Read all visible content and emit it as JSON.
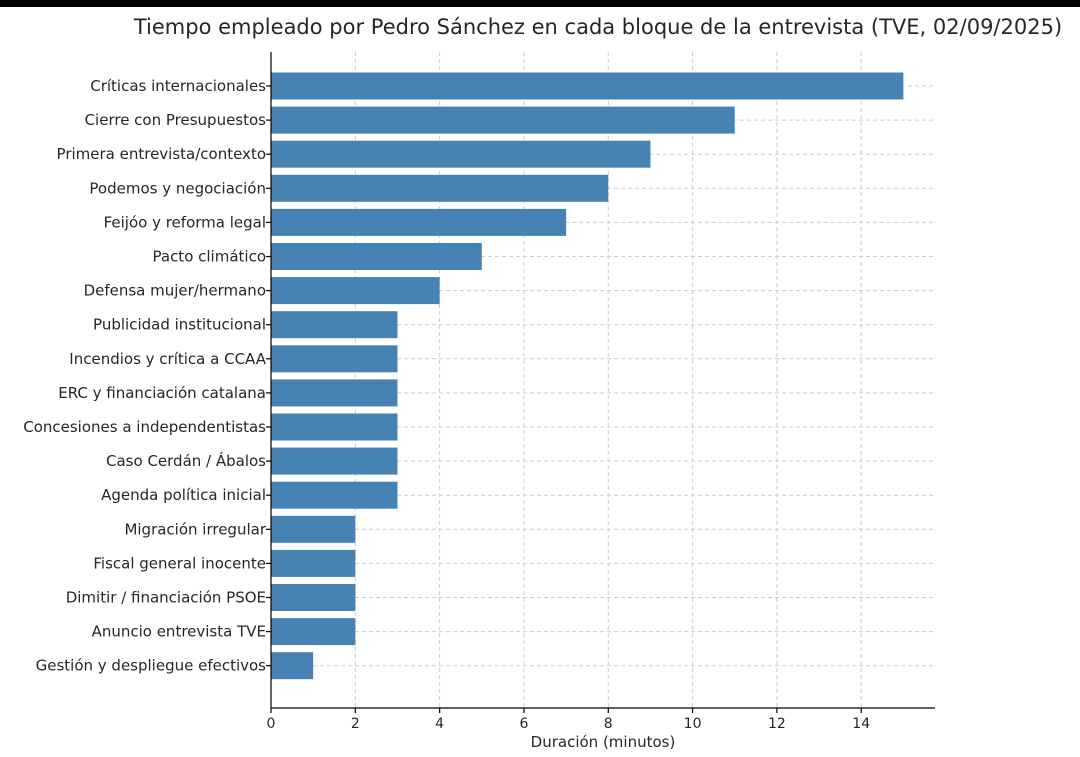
{
  "chart_data": {
    "type": "bar",
    "orientation": "horizontal",
    "title": "Tiempo empleado por Pedro Sánchez en cada bloque de la entrevista (TVE, 02/09/2025)",
    "xlabel": "Duración (minutos)",
    "ylabel": "",
    "xlim": [
      0,
      15.75
    ],
    "xticks": [
      0,
      2,
      4,
      6,
      8,
      10,
      12,
      14
    ],
    "grid": true,
    "bar_color": "#4682b4",
    "categories": [
      "Críticas internacionales",
      "Cierre con Presupuestos",
      "Primera entrevista/contexto",
      "Podemos y negociación",
      "Feijóo y reforma legal",
      "Pacto climático",
      "Defensa mujer/hermano",
      "Publicidad institucional",
      "Incendios y crítica a CCAA",
      "ERC y financiación catalana",
      "Concesiones a independentistas",
      "Caso Cerdán / Ábalos",
      "Agenda política inicial",
      "Migración irregular",
      "Fiscal general inocente",
      "Dimitir / financiación PSOE",
      "Anuncio entrevista TVE",
      "Gestión y despliegue efectivos"
    ],
    "values": [
      15,
      11,
      9,
      8,
      7,
      5,
      4,
      3,
      3,
      3,
      3,
      3,
      3,
      2,
      2,
      2,
      2,
      1
    ]
  }
}
